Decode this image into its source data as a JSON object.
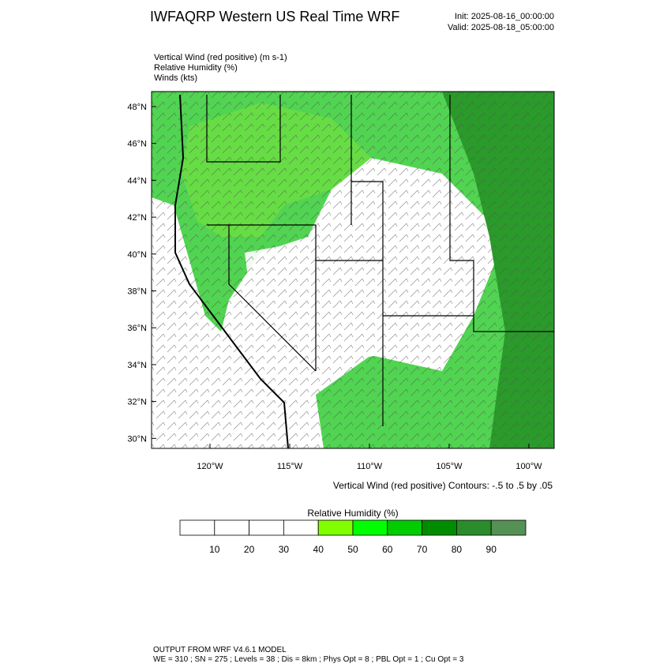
{
  "header": {
    "title": "IWFAQRP Western US Real Time WRF",
    "init": "Init: 2025-08-16_00:00:00",
    "valid": "Valid: 2025-08-18_05:00:00"
  },
  "fields": [
    "Vertical Wind (red positive)   (m s-1)",
    "Relative Humidity   (%)",
    "Winds   (kts)"
  ],
  "map": {
    "lat_labels": [
      "48°N",
      "46°N",
      "44°N",
      "42°N",
      "40°N",
      "38°N",
      "36°N",
      "34°N",
      "32°N",
      "30°N"
    ],
    "lon_labels": [
      "120°W",
      "115°W",
      "110°W",
      "105°W",
      "100°W"
    ],
    "contour_note": "Vertical Wind (red positive) Contours: -.5 to .5 by .05"
  },
  "colorbar": {
    "title": "Relative Humidity   (%)",
    "ticks": [
      10,
      20,
      30,
      40,
      50,
      60,
      70,
      80,
      90
    ],
    "colors": [
      "#ffffff",
      "#ffffff",
      "#ffffff",
      "#ffffff",
      "#80ff00",
      "#00ff00",
      "#00cc00",
      "#008c00",
      "#2a8c2a",
      "#559155"
    ]
  },
  "footer": [
    "OUTPUT FROM WRF V4.6.1 MODEL",
    "WE = 310 ; SN = 275 ; Levels = 38 ; Dis = 8km ; Phys Opt = 8 ; PBL Opt = 1 ; Cu Opt = 3"
  ]
}
